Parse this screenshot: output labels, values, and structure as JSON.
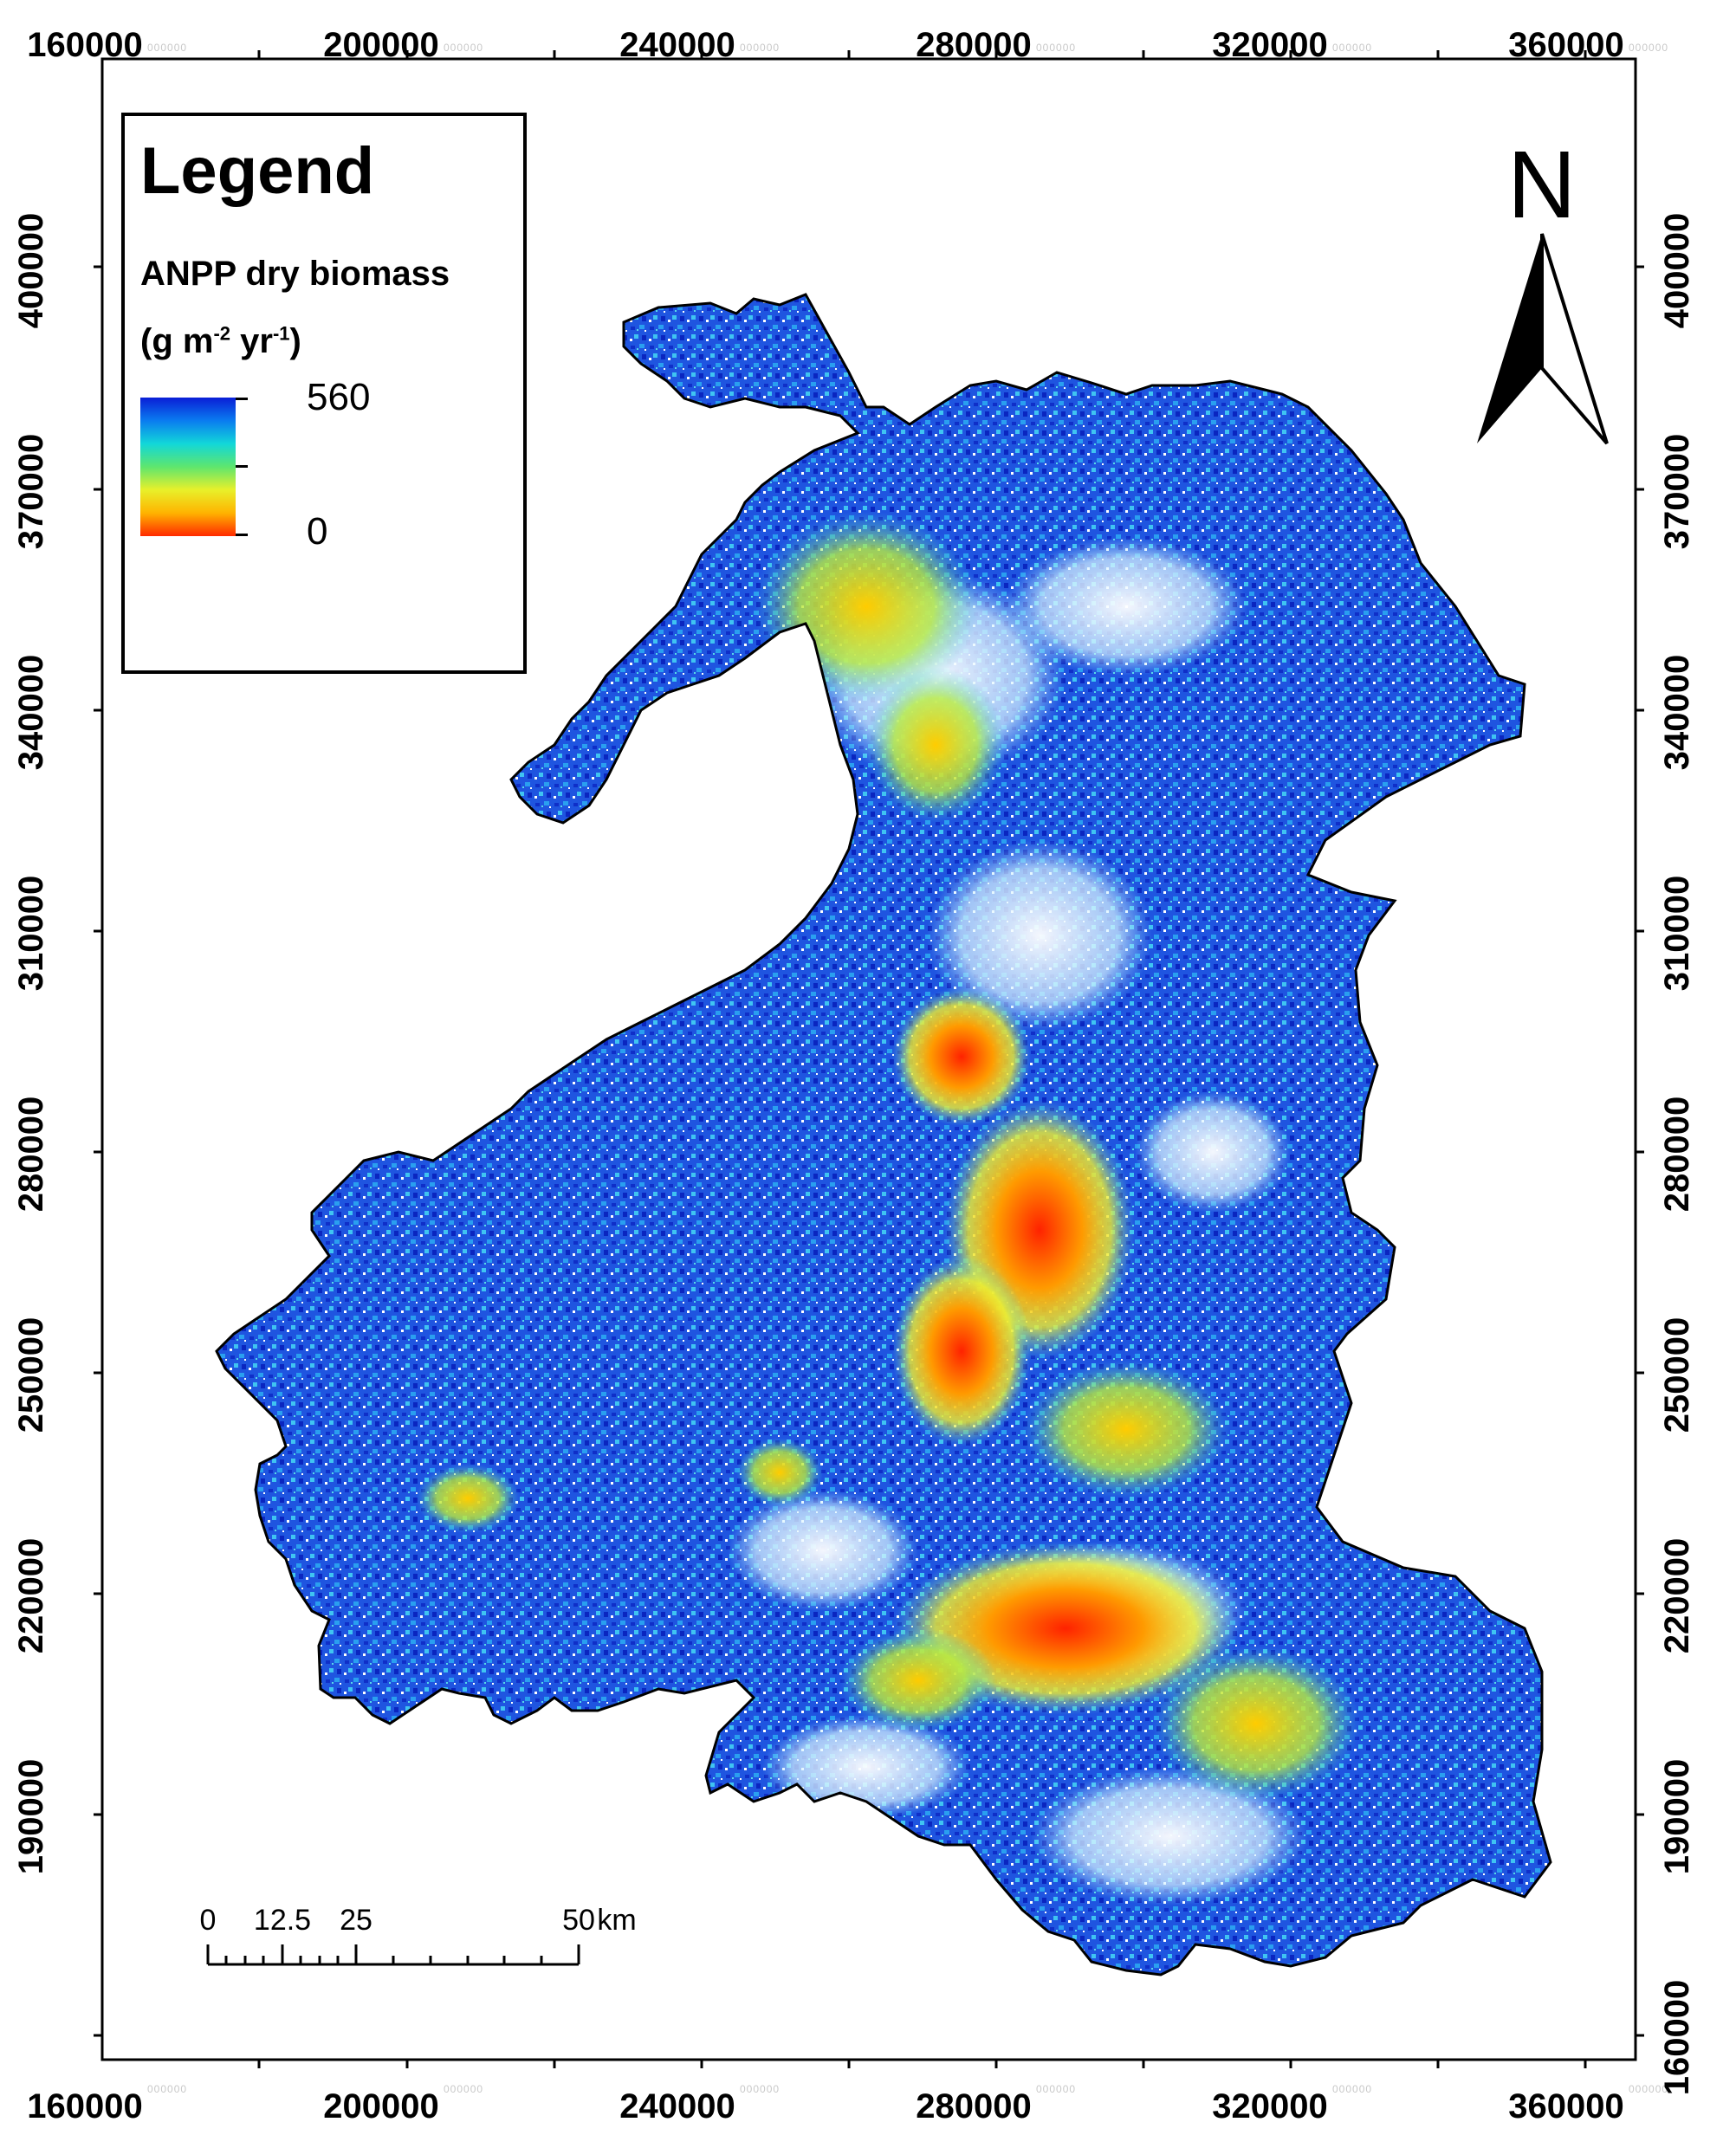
{
  "x_axis": {
    "top": [
      {
        "label": "160000",
        "ghost": "000000"
      },
      {
        "label": "200000",
        "ghost": "000000"
      },
      {
        "label": "240000",
        "ghost": "000000"
      },
      {
        "label": "280000",
        "ghost": "000000"
      },
      {
        "label": "320000",
        "ghost": "000000"
      },
      {
        "label": "360000",
        "ghost": "000000"
      }
    ],
    "bottom": [
      {
        "label": "160000",
        "ghost": "000000"
      },
      {
        "label": "200000",
        "ghost": "000000"
      },
      {
        "label": "240000",
        "ghost": "000000"
      },
      {
        "label": "280000",
        "ghost": "000000"
      },
      {
        "label": "320000",
        "ghost": "000000"
      },
      {
        "label": "360000",
        "ghost": "000000"
      }
    ]
  },
  "y_axis": {
    "left": [
      "400000",
      "370000",
      "340000",
      "310000",
      "280000",
      "250000",
      "220000",
      "190000"
    ],
    "right": [
      "400000",
      "370000",
      "340000",
      "310000",
      "280000",
      "250000",
      "220000",
      "190000",
      "160000"
    ]
  },
  "legend": {
    "title": "Legend",
    "variable": "ANPP dry biomass",
    "unit_prefix": "(g m",
    "unit_exp1": "-2",
    "unit_mid": " yr",
    "unit_exp2": "-1",
    "unit_suffix": ")",
    "max_label": "560",
    "min_label": "0",
    "ramp_colors": [
      "#0a1ed6",
      "#0a7cf0",
      "#12d7d9",
      "#5ee66e",
      "#e8f02a",
      "#ffb300",
      "#ff2a00"
    ]
  },
  "north_arrow": {
    "label": "N"
  },
  "scale_bar": {
    "labels": [
      "0",
      "12.5",
      "25",
      "50"
    ],
    "unit": "km"
  },
  "map": {
    "description_colors": {
      "high": "#1e3cd8",
      "mid": "#2a9cf0",
      "low_mid": "#7fe060",
      "low": "#ffd000",
      "lowest": "#ff2a00"
    }
  }
}
